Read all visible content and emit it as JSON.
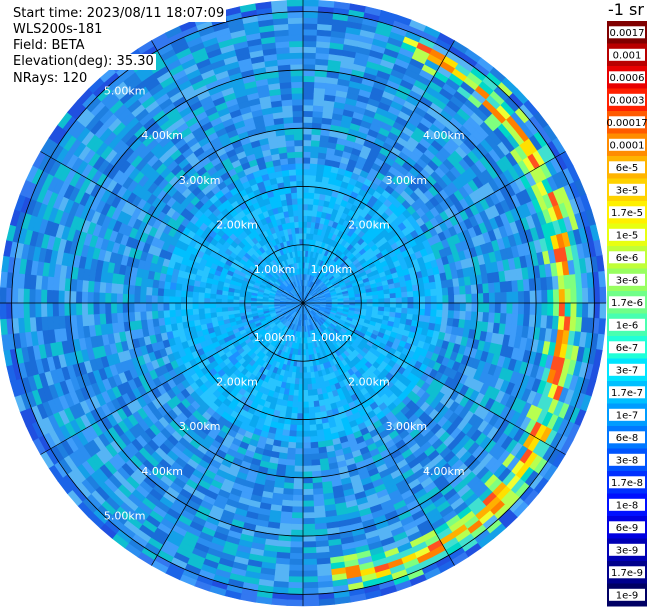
{
  "info": {
    "start_time": "Start time: 2023/08/11 18:07:09",
    "instrument": "WLS200s-181",
    "field": "Field: BETA",
    "elevation": "Elevation(deg): 35.30",
    "nrays": "NRays: 120"
  },
  "colorbar_title": "-1 sr",
  "chart_data": {
    "type": "heatmap",
    "subtype": "polar-ppi",
    "field": "BETA",
    "range_rings_km": [
      1,
      2,
      3,
      4,
      5
    ],
    "ring_labels": [
      "1.00km",
      "2.00km",
      "3.00km",
      "4.00km",
      "5.00km"
    ],
    "max_range_km": 5.2,
    "spokes_deg": [
      0,
      30,
      60,
      90,
      120,
      150,
      180,
      210,
      240,
      270,
      300,
      330
    ],
    "nrays": 120,
    "colorbar": {
      "scale": "log",
      "labels": [
        "0.0017",
        "0.001",
        "0.0006",
        "0.0003",
        "0.00017",
        "0.0001",
        "6e-5",
        "3e-5",
        "1.7e-5",
        "1e-5",
        "6e-6",
        "3e-6",
        "1.7e-6",
        "1e-6",
        "6e-7",
        "3e-7",
        "1.7e-7",
        "1e-7",
        "6e-8",
        "3e-8",
        "1.7e-8",
        "1e-8",
        "6e-9",
        "3e-9",
        "1.7e-9",
        "1e-9"
      ],
      "colors": [
        "#800000",
        "#b80000",
        "#e80000",
        "#ff2000",
        "#ff5a00",
        "#ff8c00",
        "#ffb400",
        "#ffd200",
        "#fff000",
        "#e8ff10",
        "#c0ff38",
        "#98ff60",
        "#70ff88",
        "#48ffb0",
        "#20ffd8",
        "#00e4ff",
        "#00c0ff",
        "#009cff",
        "#0078ff",
        "#0054ff",
        "#0030ff",
        "#0010ff",
        "#0000e0",
        "#0000b4",
        "#00008c",
        "#000064"
      ]
    },
    "features": [
      {
        "description": "high backscatter arc",
        "azimuth_deg_range": [
          20,
          175
        ],
        "range_km": [
          4.1,
          5.0
        ]
      }
    ]
  }
}
